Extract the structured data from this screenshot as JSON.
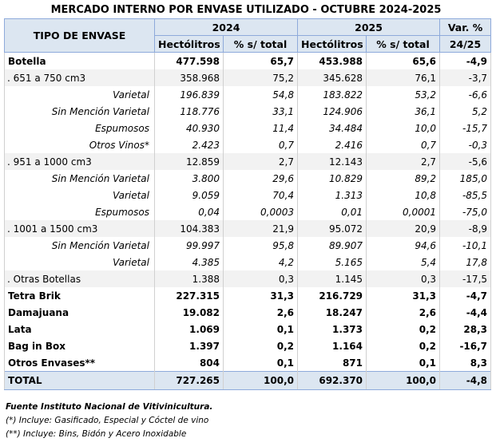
{
  "title": "MERCADO INTERNO POR ENVASE UTILIZADO - OCTUBRE 2024-2025",
  "headers": {
    "tipo": "TIPO DE ENVASE",
    "year1": "2024",
    "year2": "2025",
    "var_line1": "Var. %",
    "var_line2": "24/25",
    "hl": "Hectólitros",
    "pct": "% s/ total"
  },
  "rows": [
    {
      "label": "Botella",
      "kind": "main",
      "shade": false,
      "v1": "477.598",
      "p1": "65,7",
      "v2": "453.988",
      "p2": "65,6",
      "var": "-4,9"
    },
    {
      "label": ". 651 a 750 cm3",
      "kind": "sub",
      "shade": true,
      "v1": "358.968",
      "p1": "75,2",
      "v2": "345.628",
      "p2": "76,1",
      "var": "-3,7"
    },
    {
      "label": "Varietal",
      "kind": "detail",
      "shade": false,
      "v1": "196.839",
      "p1": "54,8",
      "v2": "183.822",
      "p2": "53,2",
      "var": "-6,6"
    },
    {
      "label": "Sin Mención Varietal",
      "kind": "detail",
      "shade": false,
      "v1": "118.776",
      "p1": "33,1",
      "v2": "124.906",
      "p2": "36,1",
      "var": "5,2"
    },
    {
      "label": "Espumosos",
      "kind": "detail",
      "shade": false,
      "v1": "40.930",
      "p1": "11,4",
      "v2": "34.484",
      "p2": "10,0",
      "var": "-15,7"
    },
    {
      "label": "Otros Vinos*",
      "kind": "detail",
      "shade": false,
      "v1": "2.423",
      "p1": "0,7",
      "v2": "2.416",
      "p2": "0,7",
      "var": "-0,3"
    },
    {
      "label": ". 951 a 1000 cm3",
      "kind": "sub",
      "shade": true,
      "v1": "12.859",
      "p1": "2,7",
      "v2": "12.143",
      "p2": "2,7",
      "var": "-5,6"
    },
    {
      "label": "Sin Mención Varietal",
      "kind": "detail",
      "shade": false,
      "v1": "3.800",
      "p1": "29,6",
      "v2": "10.829",
      "p2": "89,2",
      "var": "185,0"
    },
    {
      "label": "Varietal",
      "kind": "detail",
      "shade": false,
      "v1": "9.059",
      "p1": "70,4",
      "v2": "1.313",
      "p2": "10,8",
      "var": "-85,5"
    },
    {
      "label": "Espumosos",
      "kind": "detail",
      "shade": false,
      "v1": "0,04",
      "p1": "0,0003",
      "v2": "0,01",
      "p2": "0,0001",
      "var": "-75,0"
    },
    {
      "label": ". 1001 a 1500 cm3",
      "kind": "sub",
      "shade": true,
      "v1": "104.383",
      "p1": "21,9",
      "v2": "95.072",
      "p2": "20,9",
      "var": "-8,9"
    },
    {
      "label": "Sin Mención Varietal",
      "kind": "detail",
      "shade": false,
      "v1": "99.997",
      "p1": "95,8",
      "v2": "89.907",
      "p2": "94,6",
      "var": "-10,1"
    },
    {
      "label": "Varietal",
      "kind": "detail",
      "shade": false,
      "v1": "4.385",
      "p1": "4,2",
      "v2": "5.165",
      "p2": "5,4",
      "var": "17,8"
    },
    {
      "label": ". Otras Botellas",
      "kind": "sub",
      "shade": true,
      "v1": "1.388",
      "p1": "0,3",
      "v2": "1.145",
      "p2": "0,3",
      "var": "-17,5"
    },
    {
      "label": "Tetra Brik",
      "kind": "main",
      "shade": false,
      "v1": "227.315",
      "p1": "31,3",
      "v2": "216.729",
      "p2": "31,3",
      "var": "-4,7"
    },
    {
      "label": "Damajuana",
      "kind": "main",
      "shade": false,
      "v1": "19.082",
      "p1": "2,6",
      "v2": "18.247",
      "p2": "2,6",
      "var": "-4,4"
    },
    {
      "label": "Lata",
      "kind": "main",
      "shade": false,
      "v1": "1.069",
      "p1": "0,1",
      "v2": "1.373",
      "p2": "0,2",
      "var": "28,3"
    },
    {
      "label": "Bag in Box",
      "kind": "main",
      "shade": false,
      "v1": "1.397",
      "p1": "0,2",
      "v2": "1.164",
      "p2": "0,2",
      "var": "-16,7"
    },
    {
      "label": "Otros Envases**",
      "kind": "main",
      "shade": false,
      "v1": "804",
      "p1": "0,1",
      "v2": "871",
      "p2": "0,1",
      "var": "8,3"
    }
  ],
  "total": {
    "label": "TOTAL",
    "v1": "727.265",
    "p1": "100,0",
    "v2": "692.370",
    "p2": "100,0",
    "var": "-4,8"
  },
  "notes": {
    "source": "Fuente Instituto Nacional de Vitivinicultura.",
    "note1": "(*) Incluye: Gasificado, Especial y Cóctel de vino",
    "note2": "(**) Incluye: Bins, Bidón y Acero Inoxidable"
  }
}
